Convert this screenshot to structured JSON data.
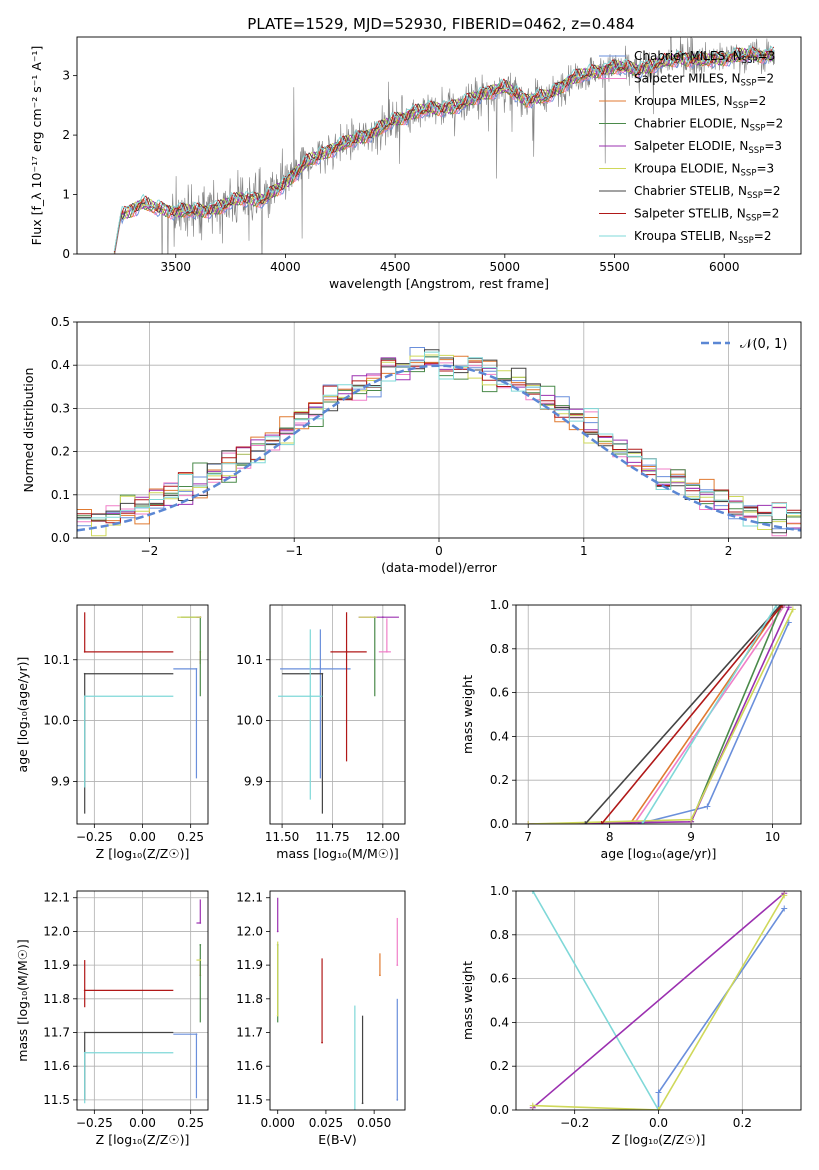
{
  "figure": {
    "title": "PLATE=1529, MJD=52930, FIBERID=0462, z=0.484"
  },
  "colors": {
    "chabrier_miles": "#6a8fdb",
    "salpeter_miles": "#f07fc8",
    "kroupa_miles": "#e07a30",
    "chabrier_elodie": "#4a8a4a",
    "salpeter_elodie": "#9b30b0",
    "kroupa_elodie": "#cfd85a",
    "chabrier_stelib": "#444444",
    "salpeter_stelib": "#b01818",
    "kroupa_stelib": "#7fd8d8",
    "data": "#808080",
    "gaussian": "#5b87d4",
    "grid": "#b0b0b0"
  },
  "chart_data": [
    {
      "id": "spectrum",
      "type": "line",
      "xlabel": "wavelength [Angstrom, rest frame]",
      "ylabel": "Flux [f_λ 10⁻¹⁷ erg cm⁻² s⁻¹ A⁻¹]",
      "xlim": [
        3050,
        6350
      ],
      "ylim": [
        0,
        3.65
      ],
      "xticks": [
        3500,
        4000,
        4500,
        5000,
        5500,
        6000
      ],
      "yticks": [
        0,
        1,
        2,
        3
      ],
      "grid": false,
      "legend_position": "top-right",
      "data_anchors": {
        "x": [
          3220,
          3250,
          3300,
          3350,
          3400,
          3450,
          3500,
          3600,
          3700,
          3800,
          3900,
          4000,
          4100,
          4200,
          4300,
          4400,
          4500,
          4600,
          4700,
          4800,
          4900,
          5000,
          5100,
          5200,
          5300,
          5400,
          5500,
          5600,
          5700,
          5800,
          5900,
          6000,
          6100,
          6200
        ],
        "y": [
          0.0,
          0.65,
          0.75,
          0.85,
          0.78,
          0.75,
          0.72,
          0.72,
          0.78,
          0.95,
          0.9,
          1.2,
          1.55,
          1.75,
          1.9,
          2.05,
          2.25,
          2.4,
          2.45,
          2.5,
          2.7,
          2.8,
          2.6,
          2.65,
          2.95,
          3.05,
          3.15,
          3.1,
          3.2,
          3.3,
          3.25,
          3.3,
          3.35,
          3.35
        ]
      },
      "series": [
        {
          "name": "Chabrier MILES, N_SSP=3",
          "label_main": "Chabrier MILES, N",
          "label_sub": "SSP",
          "label_tail": "=3",
          "color_key": "chabrier_miles"
        },
        {
          "name": "Salpeter MILES, N_SSP=2",
          "label_main": "Salpeter MILES, N",
          "label_sub": "SSP",
          "label_tail": "=2",
          "color_key": "salpeter_miles"
        },
        {
          "name": "Kroupa MILES, N_SSP=2",
          "label_main": "Kroupa MILES, N",
          "label_sub": "SSP",
          "label_tail": "=2",
          "color_key": "kroupa_miles"
        },
        {
          "name": "Chabrier ELODIE, N_SSP=2",
          "label_main": "Chabrier ELODIE, N",
          "label_sub": "SSP",
          "label_tail": "=2",
          "color_key": "chabrier_elodie"
        },
        {
          "name": "Salpeter ELODIE, N_SSP=3",
          "label_main": "Salpeter ELODIE, N",
          "label_sub": "SSP",
          "label_tail": "=3",
          "color_key": "salpeter_elodie"
        },
        {
          "name": "Kroupa ELODIE, N_SSP=3",
          "label_main": "Kroupa ELODIE, N",
          "label_sub": "SSP",
          "label_tail": "=3",
          "color_key": "kroupa_elodie"
        },
        {
          "name": "Chabrier STELIB, N_SSP=2",
          "label_main": "Chabrier STELIB, N",
          "label_sub": "SSP",
          "label_tail": "=2",
          "color_key": "chabrier_stelib"
        },
        {
          "name": "Salpeter STELIB, N_SSP=2",
          "label_main": "Salpeter STELIB, N",
          "label_sub": "SSP",
          "label_tail": "=2",
          "color_key": "salpeter_stelib"
        },
        {
          "name": "Kroupa STELIB, N_SSP=2",
          "label_main": "Kroupa STELIB, N",
          "label_sub": "SSP",
          "label_tail": "=2",
          "color_key": "kroupa_stelib"
        }
      ]
    },
    {
      "id": "residuals",
      "type": "line",
      "xlabel": "(data-model)/error",
      "ylabel": "Normed distribution",
      "xlim": [
        -2.5,
        2.5
      ],
      "ylim": [
        0,
        0.5
      ],
      "xticks": [
        -2,
        -1,
        0,
        1,
        2
      ],
      "yticks": [
        0.0,
        0.1,
        0.2,
        0.3,
        0.4,
        0.5
      ],
      "grid": true,
      "legend_position": "top-right",
      "legend_label": "𝒩(0, 1)",
      "curve": "normal pdf, mean 0, sigma 1"
    },
    {
      "id": "age_vs_Z",
      "type": "scatter",
      "xlabel": "Z [log₁₀(Z/Z☉)]",
      "ylabel": "age  [log₁₀(age/yr)]",
      "xlim": [
        -0.34,
        0.34
      ],
      "ylim": [
        9.83,
        10.19
      ],
      "xticks": [
        -0.25,
        0.0,
        0.25
      ],
      "yticks": [
        9.9,
        10.0,
        10.1
      ],
      "grid": true,
      "points": [
        {
          "series": "chabrier_miles",
          "x": 0.28,
          "xerr": [
            0.12,
            0.0
          ],
          "y": 10.085,
          "yerr": [
            0.18,
            0.0
          ]
        },
        {
          "series": "kroupa_miles",
          "x": 0.3,
          "xerr": [
            0.0,
            0.0
          ],
          "y": 10.113,
          "yerr": [
            0.02,
            0.0
          ]
        },
        {
          "series": "chabrier_elodie",
          "x": 0.3,
          "xerr": [
            0.1,
            0.0
          ],
          "y": 10.17,
          "yerr": [
            0.13,
            0.0
          ]
        },
        {
          "series": "salpeter_elodie",
          "x": 0.3,
          "xerr": [
            0.02,
            0.0
          ],
          "y": 10.17,
          "yerr": [
            0.0,
            0.0
          ]
        },
        {
          "series": "kroupa_elodie",
          "x": 0.3,
          "xerr": [
            0.12,
            0.0
          ],
          "y": 10.17,
          "yerr": [
            0.0,
            0.0
          ]
        },
        {
          "series": "chabrier_stelib",
          "x": -0.3,
          "xerr": [
            0.0,
            0.46
          ],
          "y": 10.077,
          "yerr": [
            0.23,
            0.0
          ]
        },
        {
          "series": "salpeter_stelib",
          "x": -0.3,
          "xerr": [
            0.0,
            0.46
          ],
          "y": 10.113,
          "yerr": [
            0.0,
            0.065
          ]
        },
        {
          "series": "kroupa_stelib",
          "x": -0.3,
          "xerr": [
            0.0,
            0.46
          ],
          "y": 10.04,
          "yerr": [
            0.15,
            0.0
          ]
        }
      ]
    },
    {
      "id": "age_vs_mass",
      "type": "scatter",
      "xlabel": "mass [log₁₀(M/M☉)]",
      "ylabel": "",
      "xlim": [
        11.44,
        12.11
      ],
      "ylim": [
        9.83,
        10.19
      ],
      "xticks": [
        11.5,
        11.75,
        12.0
      ],
      "yticks": [
        9.9,
        10.0,
        10.1
      ],
      "grid": true,
      "points": [
        {
          "series": "chabrier_miles",
          "x": 11.69,
          "xerr": [
            0.2,
            0.15
          ],
          "y": 10.085,
          "yerr": [
            0.18,
            0.065
          ]
        },
        {
          "series": "salpeter_miles",
          "x": 12.02,
          "xerr": [
            0.04,
            0.02
          ],
          "y": 10.113,
          "yerr": [
            0.0,
            0.055
          ]
        },
        {
          "series": "chabrier_elodie",
          "x": 11.96,
          "xerr": [
            0.0,
            0.0
          ],
          "y": 10.17,
          "yerr": [
            0.13,
            0.0
          ]
        },
        {
          "series": "salpeter_elodie",
          "x": 12.0,
          "xerr": [
            0.12,
            0.08
          ],
          "y": 10.17,
          "yerr": [
            0.0,
            0.0
          ]
        },
        {
          "series": "kroupa_elodie",
          "x": 11.94,
          "xerr": [
            0.06,
            0.03
          ],
          "y": 10.17,
          "yerr": [
            0.0,
            0.0
          ]
        },
        {
          "series": "chabrier_stelib",
          "x": 11.7,
          "xerr": [
            0.2,
            0.0
          ],
          "y": 10.077,
          "yerr": [
            0.23,
            0.0
          ]
        },
        {
          "series": "salpeter_stelib",
          "x": 11.82,
          "xerr": [
            0.08,
            0.1
          ],
          "y": 10.113,
          "yerr": [
            0.18,
            0.065
          ]
        },
        {
          "series": "kroupa_stelib",
          "x": 11.64,
          "xerr": [
            0.16,
            0.06
          ],
          "y": 10.04,
          "yerr": [
            0.17,
            0.11
          ]
        }
      ]
    },
    {
      "id": "mass_weight_vs_age",
      "type": "line",
      "xlabel": "age  [log₁₀(age/yr)]",
      "ylabel": "mass weight",
      "xlim": [
        6.85,
        10.35
      ],
      "ylim": [
        0,
        1.0
      ],
      "xticks": [
        7,
        8,
        9,
        10
      ],
      "yticks": [
        0.0,
        0.2,
        0.4,
        0.6,
        0.8,
        1.0
      ],
      "grid": true,
      "series": [
        {
          "color_key": "chabrier_miles",
          "x": [
            8.35,
            9.2,
            10.2
          ],
          "y": [
            0.0,
            0.08,
            0.92
          ]
        },
        {
          "color_key": "salpeter_miles",
          "x": [
            8.3,
            10.15
          ],
          "y": [
            0.0,
            1.0
          ]
        },
        {
          "color_key": "kroupa_miles",
          "x": [
            8.25,
            10.1
          ],
          "y": [
            0.0,
            1.0
          ]
        },
        {
          "color_key": "chabrier_elodie",
          "x": [
            9.0,
            10.1
          ],
          "y": [
            0.01,
            0.99
          ]
        },
        {
          "color_key": "salpeter_elodie",
          "x": [
            7.0,
            9.0,
            10.2
          ],
          "y": [
            0.0,
            0.01,
            0.99
          ]
        },
        {
          "color_key": "kroupa_elodie",
          "x": [
            7.0,
            9.0,
            10.25
          ],
          "y": [
            0.0,
            0.02,
            0.98
          ]
        },
        {
          "color_key": "chabrier_stelib",
          "x": [
            7.7,
            10.1
          ],
          "y": [
            0.0,
            1.0
          ]
        },
        {
          "color_key": "salpeter_stelib",
          "x": [
            7.9,
            10.12
          ],
          "y": [
            0.0,
            1.0
          ]
        },
        {
          "color_key": "kroupa_stelib",
          "x": [
            8.4,
            10.05
          ],
          "y": [
            0.0,
            1.0
          ]
        }
      ]
    },
    {
      "id": "mass_vs_Z",
      "type": "scatter",
      "xlabel": "Z [log₁₀(Z/Z☉)]",
      "ylabel": "mass [log₁₀(M/M☉)]",
      "xlim": [
        -0.34,
        0.34
      ],
      "ylim": [
        11.47,
        12.12
      ],
      "xticks": [
        -0.25,
        0.0,
        0.25
      ],
      "yticks": [
        11.5,
        11.6,
        11.7,
        11.8,
        11.9,
        12.0,
        12.1
      ],
      "grid": true,
      "points": [
        {
          "series": "chabrier_miles",
          "x": 0.28,
          "xerr": [
            0.12,
            0.0
          ],
          "y": 11.695,
          "yerr": [
            0.19,
            0.0
          ]
        },
        {
          "series": "kroupa_miles",
          "x": 0.3,
          "xerr": [
            0.0,
            0.0
          ],
          "y": 11.87,
          "yerr": [
            0.0,
            0.05
          ]
        },
        {
          "series": "chabrier_elodie",
          "x": 0.3,
          "xerr": [
            0.0,
            0.0
          ],
          "y": 11.96,
          "yerr": [
            0.23,
            0.0
          ]
        },
        {
          "series": "salpeter_elodie",
          "x": 0.3,
          "xerr": [
            0.02,
            0.0
          ],
          "y": 12.025,
          "yerr": [
            0.0,
            0.07
          ]
        },
        {
          "series": "kroupa_elodie",
          "x": 0.3,
          "xerr": [
            0.02,
            0.0
          ],
          "y": 11.915,
          "yerr": [
            0.0,
            0.0
          ]
        },
        {
          "series": "chabrier_stelib",
          "x": -0.3,
          "xerr": [
            0.0,
            0.46
          ],
          "y": 11.7,
          "yerr": [
            0.2,
            0.0
          ]
        },
        {
          "series": "salpeter_stelib",
          "x": -0.3,
          "xerr": [
            0.0,
            0.46
          ],
          "y": 11.825,
          "yerr": [
            0.05,
            0.09
          ]
        },
        {
          "series": "kroupa_stelib",
          "x": -0.3,
          "xerr": [
            0.0,
            0.46
          ],
          "y": 11.64,
          "yerr": [
            0.15,
            0.0
          ]
        }
      ]
    },
    {
      "id": "mass_vs_ebv",
      "type": "scatter",
      "xlabel": "E(B-V)",
      "ylabel": "",
      "xlim": [
        -0.004,
        0.066
      ],
      "ylim": [
        11.47,
        12.12
      ],
      "xticks": [
        0.0,
        0.025,
        0.05
      ],
      "yticks": [
        11.5,
        11.6,
        11.7,
        11.8,
        11.9,
        12.0,
        12.1
      ],
      "grid": false,
      "points": [
        {
          "series": "chabrier_miles",
          "x": 0.062,
          "y": 11.5,
          "yerr": [
            0.0,
            0.3
          ]
        },
        {
          "series": "salpeter_miles",
          "x": 0.062,
          "y": 11.9,
          "yerr": [
            0.0,
            0.14
          ]
        },
        {
          "series": "kroupa_miles",
          "x": 0.053,
          "y": 11.87,
          "yerr": [
            0.0,
            0.065
          ]
        },
        {
          "series": "chabrier_elodie",
          "x": 0.0,
          "y": 11.96,
          "yerr": [
            0.23,
            0.0
          ]
        },
        {
          "series": "salpeter_elodie",
          "x": 0.0,
          "y": 12.0,
          "yerr": [
            0.0,
            0.1
          ]
        },
        {
          "series": "kroupa_elodie",
          "x": 0.0,
          "y": 11.75,
          "yerr": [
            0.0,
            0.22
          ]
        },
        {
          "series": "chabrier_stelib",
          "x": 0.044,
          "y": 11.49,
          "yerr": [
            0.0,
            0.26
          ]
        },
        {
          "series": "salpeter_stelib",
          "x": 0.023,
          "y": 11.67,
          "yerr": [
            0.0,
            0.25
          ]
        },
        {
          "series": "kroupa_stelib",
          "x": 0.04,
          "y": 11.47,
          "yerr": [
            0.0,
            0.31
          ]
        }
      ]
    },
    {
      "id": "mass_weight_vs_Z",
      "type": "line",
      "xlabel": "Z [log₁₀(Z/Z☉)]",
      "ylabel": "mass weight",
      "xlim": [
        -0.34,
        0.34
      ],
      "ylim": [
        0,
        1.0
      ],
      "xticks": [
        -0.2,
        0.0,
        0.2
      ],
      "yticks": [
        0.0,
        0.2,
        0.4,
        0.6,
        0.8,
        1.0
      ],
      "grid": true,
      "series": [
        {
          "color_key": "chabrier_miles",
          "x": [
            0.0,
            0.0,
            0.3
          ],
          "y": [
            0.0,
            0.08,
            0.92
          ]
        },
        {
          "color_key": "kroupa_stelib",
          "x": [
            -0.3,
            0.0
          ],
          "y": [
            1.0,
            0.0
          ]
        },
        {
          "color_key": "salpeter_elodie",
          "x": [
            -0.3,
            0.3
          ],
          "y": [
            0.01,
            0.99
          ]
        },
        {
          "color_key": "kroupa_elodie",
          "x": [
            -0.3,
            0.0,
            0.3
          ],
          "y": [
            0.02,
            0.0,
            0.98
          ]
        }
      ]
    }
  ]
}
